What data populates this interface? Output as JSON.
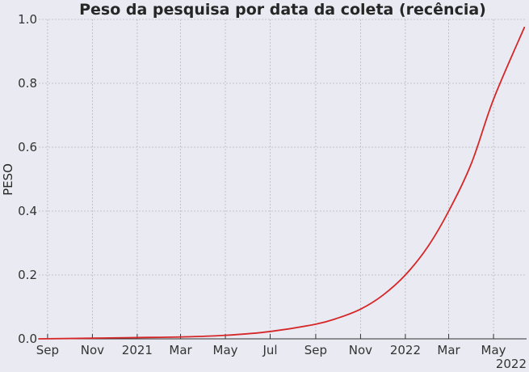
{
  "chart_data": {
    "type": "line",
    "title": "Peso da pesquisa por data da coleta (recência)",
    "xlabel": "",
    "ylabel": "PESO",
    "xlim": [
      "2020-08-20",
      "2022-06-15"
    ],
    "ylim": [
      0,
      1.0
    ],
    "grid": true,
    "line_color": "#d62728",
    "x_ticks": [
      {
        "date": "2020-09-01",
        "label": "Sep"
      },
      {
        "date": "2020-11-01",
        "label": "Nov"
      },
      {
        "date": "2021-01-01",
        "label": "2021"
      },
      {
        "date": "2021-03-01",
        "label": "Mar"
      },
      {
        "date": "2021-05-01",
        "label": "May"
      },
      {
        "date": "2021-07-01",
        "label": "Jul"
      },
      {
        "date": "2021-09-01",
        "label": "Sep"
      },
      {
        "date": "2021-11-01",
        "label": "Nov"
      },
      {
        "date": "2022-01-01",
        "label": "2022"
      },
      {
        "date": "2022-03-01",
        "label": "Mar"
      },
      {
        "date": "2022-05-01",
        "label": "May"
      }
    ],
    "x_offset_label": "2022",
    "y_ticks": [
      {
        "value": 0.0,
        "label": "0.0"
      },
      {
        "value": 0.2,
        "label": "0.2"
      },
      {
        "value": 0.4,
        "label": "0.4"
      },
      {
        "value": 0.6,
        "label": "0.6"
      },
      {
        "value": 0.8,
        "label": "0.8"
      },
      {
        "value": 1.0,
        "label": "1.0"
      }
    ],
    "series": [
      {
        "points": [
          {
            "x": "2020-08-20",
            "y": 0.0
          },
          {
            "x": "2020-11-01",
            "y": 0.002
          },
          {
            "x": "2021-01-01",
            "y": 0.004
          },
          {
            "x": "2021-03-01",
            "y": 0.006
          },
          {
            "x": "2021-05-01",
            "y": 0.011
          },
          {
            "x": "2021-07-01",
            "y": 0.023
          },
          {
            "x": "2021-09-01",
            "y": 0.046
          },
          {
            "x": "2021-10-01",
            "y": 0.065
          },
          {
            "x": "2021-11-01",
            "y": 0.093
          },
          {
            "x": "2021-12-01",
            "y": 0.136
          },
          {
            "x": "2022-01-01",
            "y": 0.2
          },
          {
            "x": "2022-02-01",
            "y": 0.29
          },
          {
            "x": "2022-03-01",
            "y": 0.4
          },
          {
            "x": "2022-04-01",
            "y": 0.55
          },
          {
            "x": "2022-05-01",
            "y": 0.75
          },
          {
            "x": "2022-06-12",
            "y": 0.975
          }
        ]
      }
    ]
  }
}
